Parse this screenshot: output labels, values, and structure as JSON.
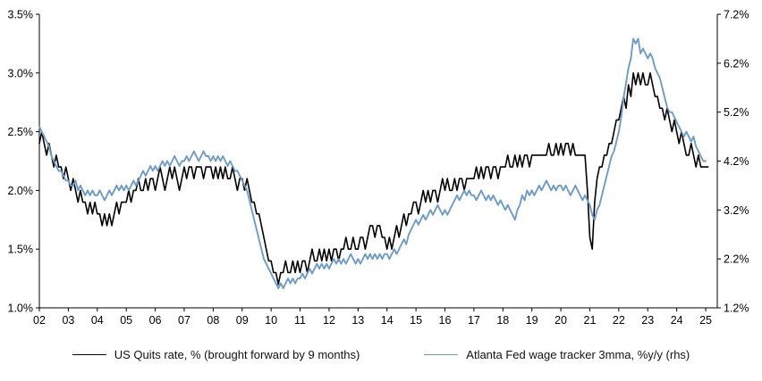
{
  "chart_data": {
    "type": "line",
    "title": "",
    "x_axis": {
      "min_year": 2002,
      "max_year": 2025.4,
      "tick_labels": [
        "02",
        "03",
        "04",
        "05",
        "06",
        "07",
        "08",
        "09",
        "10",
        "11",
        "12",
        "13",
        "14",
        "15",
        "16",
        "17",
        "18",
        "19",
        "20",
        "21",
        "22",
        "23",
        "24",
        "25"
      ]
    },
    "left_axis": {
      "min": 1.0,
      "max": 3.5,
      "ticks": [
        3.5,
        3.0,
        2.5,
        2.0,
        1.5,
        1.0
      ],
      "tick_labels": [
        "3.5%",
        "3.0%",
        "2.5%",
        "2.0%",
        "1.5%",
        "1.0%"
      ]
    },
    "right_axis": {
      "min": 1.2,
      "max": 7.2,
      "ticks": [
        7.2,
        6.2,
        5.2,
        4.2,
        3.2,
        2.2,
        1.2
      ],
      "tick_labels": [
        "7.2%",
        "6.2%",
        "5.2%",
        "4.2%",
        "3.2%",
        "2.2%",
        "1.2%"
      ]
    },
    "grid": false,
    "legend_position": "bottom",
    "series": [
      {
        "name": "US Quits rate, % (brought forward by 9 months)",
        "axis": "left",
        "color": "#000000",
        "stroke_width": 1.6,
        "start_year": 2002,
        "frequency": "monthly",
        "values": [
          2.4,
          2.5,
          2.4,
          2.3,
          2.4,
          2.3,
          2.2,
          2.3,
          2.2,
          2.2,
          2.1,
          2.2,
          2.1,
          2.0,
          2.1,
          2.0,
          1.9,
          2.0,
          1.9,
          1.9,
          1.8,
          1.9,
          1.8,
          1.9,
          1.8,
          1.8,
          1.7,
          1.8,
          1.7,
          1.8,
          1.7,
          1.8,
          1.9,
          1.8,
          1.9,
          1.9,
          1.9,
          2.0,
          1.9,
          2.0,
          2.0,
          2.1,
          2.0,
          2.0,
          2.1,
          2.0,
          2.1,
          2.1,
          2.0,
          2.1,
          2.2,
          2.1,
          2.0,
          2.1,
          2.2,
          2.1,
          2.2,
          2.1,
          2.0,
          2.1,
          2.2,
          2.1,
          2.2,
          2.2,
          2.1,
          2.2,
          2.2,
          2.2,
          2.1,
          2.2,
          2.2,
          2.2,
          2.1,
          2.2,
          2.1,
          2.2,
          2.1,
          2.2,
          2.1,
          2.1,
          2.2,
          2.1,
          2.0,
          2.1,
          2.1,
          2.0,
          2.1,
          2.0,
          1.9,
          1.9,
          1.8,
          1.8,
          1.7,
          1.6,
          1.5,
          1.4,
          1.4,
          1.3,
          1.3,
          1.2,
          1.3,
          1.3,
          1.4,
          1.3,
          1.3,
          1.4,
          1.3,
          1.4,
          1.3,
          1.4,
          1.4,
          1.3,
          1.4,
          1.5,
          1.4,
          1.4,
          1.5,
          1.4,
          1.5,
          1.4,
          1.5,
          1.4,
          1.5,
          1.5,
          1.4,
          1.5,
          1.5,
          1.6,
          1.5,
          1.5,
          1.6,
          1.5,
          1.5,
          1.6,
          1.6,
          1.5,
          1.6,
          1.7,
          1.7,
          1.6,
          1.7,
          1.7,
          1.6,
          1.6,
          1.5,
          1.6,
          1.5,
          1.6,
          1.7,
          1.6,
          1.7,
          1.8,
          1.7,
          1.8,
          1.8,
          1.9,
          1.9,
          1.8,
          1.9,
          2.0,
          1.9,
          2.0,
          1.9,
          2.0,
          2.0,
          1.9,
          2.0,
          2.1,
          2.0,
          2.1,
          2.0,
          2.0,
          2.1,
          2.0,
          2.1,
          2.1,
          2.0,
          2.1,
          2.1,
          2.1,
          2.1,
          2.2,
          2.1,
          2.2,
          2.1,
          2.2,
          2.2,
          2.1,
          2.2,
          2.2,
          2.1,
          2.2,
          2.2,
          2.2,
          2.3,
          2.2,
          2.2,
          2.3,
          2.2,
          2.3,
          2.2,
          2.3,
          2.3,
          2.2,
          2.3,
          2.3,
          2.3,
          2.3,
          2.3,
          2.3,
          2.3,
          2.4,
          2.3,
          2.3,
          2.4,
          2.3,
          2.4,
          2.3,
          2.4,
          2.4,
          2.3,
          2.4,
          2.3,
          2.3,
          2.3,
          2.3,
          2.3,
          2.0,
          1.6,
          1.5,
          1.9,
          2.1,
          2.2,
          2.2,
          2.3,
          2.3,
          2.4,
          2.4,
          2.5,
          2.6,
          2.6,
          2.7,
          2.8,
          2.7,
          2.9,
          2.8,
          3.0,
          2.9,
          3.0,
          2.9,
          3.0,
          2.9,
          2.9,
          3.0,
          2.9,
          2.8,
          2.8,
          2.7,
          2.7,
          2.6,
          2.7,
          2.6,
          2.5,
          2.6,
          2.5,
          2.4,
          2.5,
          2.4,
          2.3,
          2.3,
          2.4,
          2.3,
          2.2,
          2.3,
          2.2,
          2.2,
          2.2,
          2.2
        ]
      },
      {
        "name": "Atlanta Fed wage tracker 3mma, %y/y (rhs)",
        "axis": "right",
        "color": "#6e9cc9",
        "stroke_width": 1.9,
        "start_year": 2002,
        "frequency": "monthly",
        "values": [
          4.9,
          4.8,
          4.7,
          4.6,
          4.5,
          4.3,
          4.2,
          4.1,
          4.0,
          4.0,
          3.9,
          3.8,
          3.8,
          3.7,
          3.7,
          3.8,
          3.6,
          3.7,
          3.6,
          3.5,
          3.6,
          3.5,
          3.6,
          3.5,
          3.5,
          3.6,
          3.5,
          3.4,
          3.5,
          3.6,
          3.5,
          3.6,
          3.7,
          3.6,
          3.7,
          3.6,
          3.7,
          3.6,
          3.7,
          3.8,
          3.7,
          3.8,
          3.9,
          4.0,
          3.9,
          4.0,
          4.1,
          4.0,
          4.1,
          4.0,
          4.1,
          4.2,
          4.1,
          4.2,
          4.1,
          4.2,
          4.3,
          4.2,
          4.1,
          4.2,
          4.2,
          4.3,
          4.2,
          4.3,
          4.4,
          4.3,
          4.2,
          4.3,
          4.4,
          4.3,
          4.3,
          4.2,
          4.3,
          4.2,
          4.3,
          4.2,
          4.3,
          4.2,
          4.1,
          4.2,
          4.1,
          4.0,
          4.0,
          3.9,
          3.8,
          3.7,
          3.6,
          3.4,
          3.2,
          3.0,
          2.8,
          2.6,
          2.4,
          2.2,
          2.1,
          2.0,
          1.9,
          1.8,
          1.7,
          1.6,
          1.7,
          1.6,
          1.7,
          1.8,
          1.7,
          1.8,
          1.7,
          1.8,
          1.8,
          1.9,
          1.8,
          1.9,
          2.0,
          1.9,
          2.0,
          2.1,
          2.0,
          2.1,
          2.0,
          2.1,
          2.0,
          2.1,
          2.2,
          2.1,
          2.2,
          2.1,
          2.2,
          2.1,
          2.2,
          2.3,
          2.2,
          2.1,
          2.2,
          2.1,
          2.2,
          2.3,
          2.2,
          2.3,
          2.2,
          2.3,
          2.2,
          2.3,
          2.2,
          2.3,
          2.3,
          2.2,
          2.3,
          2.4,
          2.3,
          2.4,
          2.5,
          2.6,
          2.5,
          2.7,
          2.8,
          2.9,
          3.0,
          2.9,
          3.0,
          3.1,
          3.0,
          3.1,
          3.2,
          3.1,
          3.2,
          3.3,
          3.2,
          3.1,
          3.2,
          3.1,
          3.2,
          3.3,
          3.4,
          3.5,
          3.4,
          3.5,
          3.6,
          3.5,
          3.6,
          3.5,
          3.5,
          3.4,
          3.5,
          3.6,
          3.5,
          3.4,
          3.5,
          3.4,
          3.5,
          3.4,
          3.3,
          3.4,
          3.3,
          3.2,
          3.3,
          3.2,
          3.1,
          3.0,
          3.2,
          3.3,
          3.5,
          3.4,
          3.6,
          3.5,
          3.6,
          3.5,
          3.6,
          3.7,
          3.6,
          3.7,
          3.8,
          3.7,
          3.6,
          3.7,
          3.6,
          3.7,
          3.7,
          3.6,
          3.7,
          3.6,
          3.5,
          3.6,
          3.7,
          3.6,
          3.5,
          3.4,
          3.5,
          3.4,
          3.3,
          3.1,
          3.0,
          3.2,
          3.3,
          3.5,
          3.7,
          3.9,
          4.1,
          4.3,
          4.4,
          4.6,
          4.8,
          5.1,
          5.5,
          5.8,
          6.1,
          6.3,
          6.7,
          6.6,
          6.7,
          6.4,
          6.5,
          6.4,
          6.3,
          6.4,
          6.3,
          6.1,
          6.0,
          5.9,
          5.7,
          5.5,
          5.3,
          5.2,
          5.2,
          5.1,
          5.0,
          4.9,
          4.8,
          4.7,
          4.8,
          4.7,
          4.6,
          4.7,
          4.5,
          4.4,
          4.3,
          4.2,
          4.2
        ]
      }
    ]
  }
}
